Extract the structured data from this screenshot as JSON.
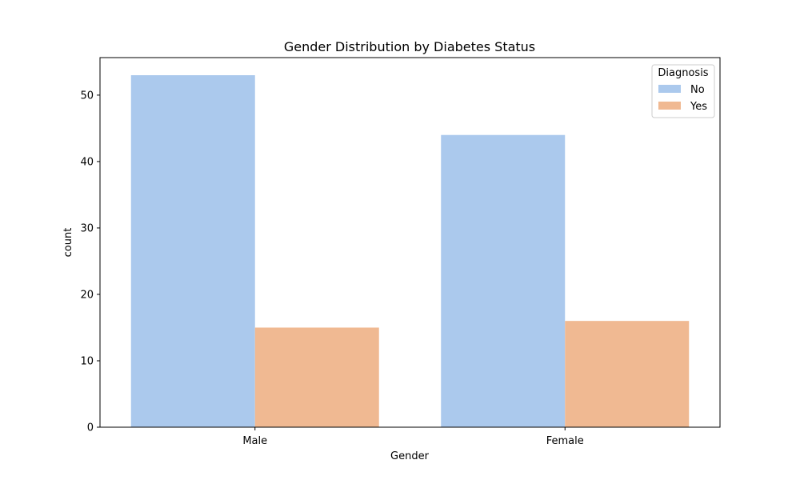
{
  "chart_data": {
    "type": "bar",
    "title": "Gender Distribution by Diabetes Status",
    "xlabel": "Gender",
    "ylabel": "count",
    "categories": [
      "Male",
      "Female"
    ],
    "series": [
      {
        "name": "No",
        "values": [
          53,
          44
        ],
        "color": "#abc9ed"
      },
      {
        "name": "Yes",
        "values": [
          15,
          16
        ],
        "color": "#f0b992"
      }
    ],
    "ylim": [
      0,
      55.65
    ],
    "yticks": [
      0,
      10,
      20,
      30,
      40,
      50
    ],
    "grid": false,
    "legend": {
      "title": "Diagnosis",
      "placement": "top-right"
    }
  }
}
